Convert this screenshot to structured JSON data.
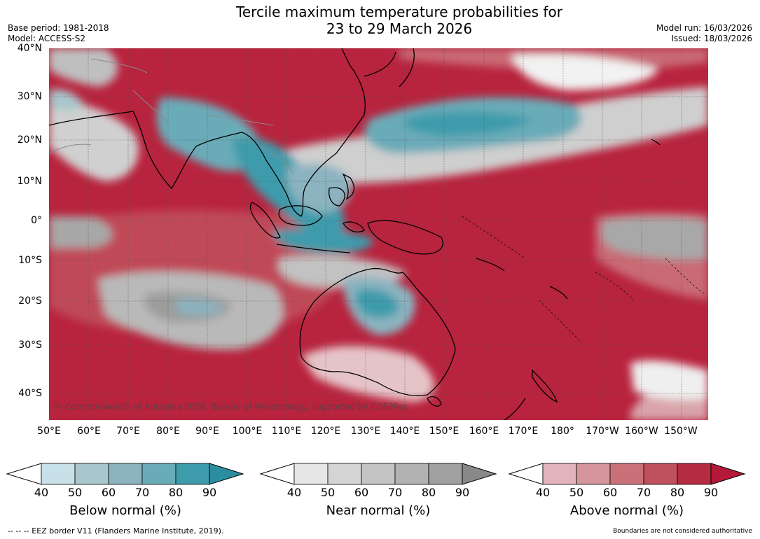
{
  "title_line1": "Tercile maximum temperature probabilities for",
  "title_line2": "23 to 29 March 2026",
  "base_period": "Base period: 1981-2018",
  "model": "Model: ACCESS-S2",
  "model_run": "Model run: 16/03/2026",
  "issued": "Issued: 18/03/2026",
  "lat_labels": [
    "40°N",
    "30°N",
    "20°N",
    "10°N",
    "0°",
    "10°S",
    "20°S",
    "30°S",
    "40°S"
  ],
  "lon_labels": [
    "50°E",
    "60°E",
    "70°E",
    "80°E",
    "90°E",
    "100°E",
    "110°E",
    "120°E",
    "130°E",
    "140°E",
    "150°E",
    "160°E",
    "170°E",
    "180°",
    "170°W",
    "160°W",
    "150°W"
  ],
  "copyright": "© Commonwealth of Australia 2026, Bureau of Meteorology, supported by COSPPac",
  "colorbars": {
    "below": {
      "title": "Below normal (%)",
      "ticks": [
        "40",
        "50",
        "60",
        "70",
        "80",
        "90"
      ],
      "colors": [
        "#c8e1e8",
        "#a7c7cc",
        "#8bb3c0",
        "#6aabb8",
        "#3d9bab",
        "#2b8ea0"
      ]
    },
    "near": {
      "title": "Near normal (%)",
      "ticks": [
        "40",
        "50",
        "60",
        "70",
        "80",
        "90"
      ],
      "colors": [
        "#e6e6e6",
        "#d4d4d4",
        "#c4c4c4",
        "#b2b2b2",
        "#a0a0a0",
        "#888888"
      ]
    },
    "above": {
      "title": "Above normal (%)",
      "ticks": [
        "40",
        "50",
        "60",
        "70",
        "80",
        "90"
      ],
      "colors": [
        "#e0b4ba",
        "#d4959c",
        "#c97179",
        "#bf515d",
        "#b52b40",
        "#b5193a"
      ]
    }
  },
  "footer_left": "--  --  -- EEZ border V11 (Flanders Marine Institute, 2019).",
  "footer_right": "Boundaries are not considered authoritative"
}
